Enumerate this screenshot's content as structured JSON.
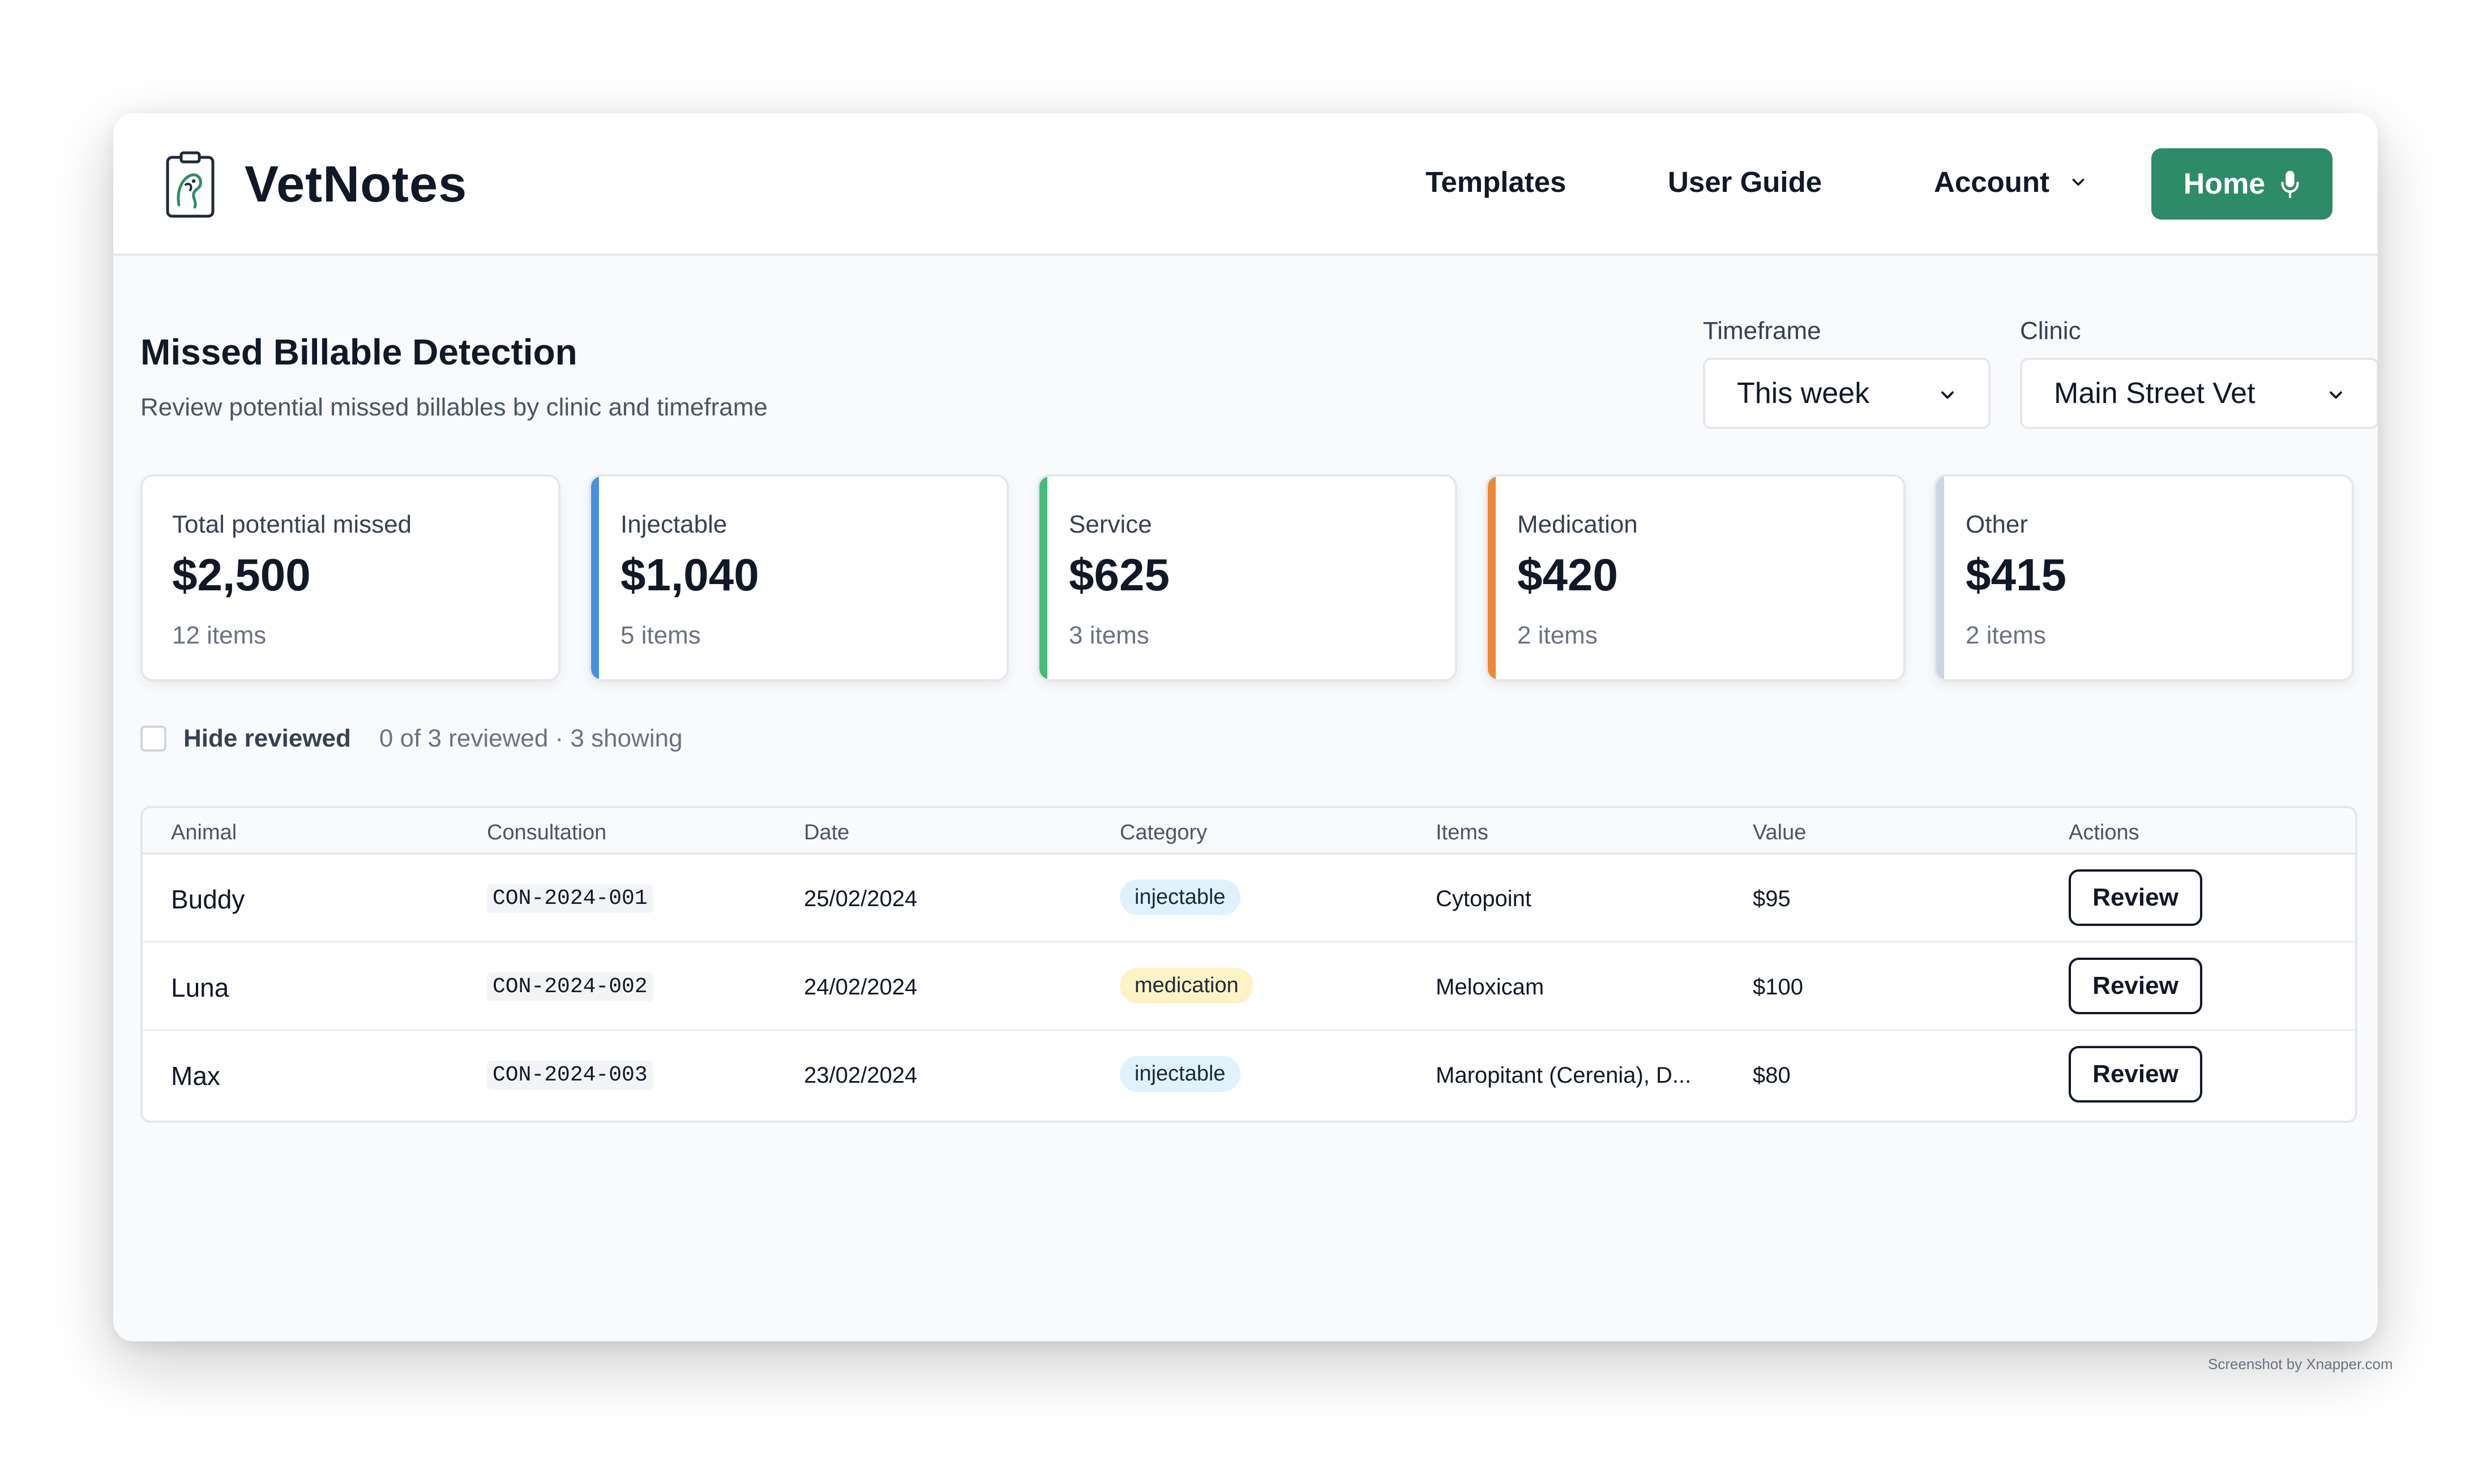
{
  "brand": {
    "name": "VetNotes"
  },
  "nav": {
    "templates": "Templates",
    "user_guide": "User Guide",
    "account": "Account",
    "home": "Home"
  },
  "header": {
    "title": "Missed Billable Detection",
    "subtitle": "Review potential missed billables by clinic and timeframe"
  },
  "filters": {
    "timeframe_label": "Timeframe",
    "timeframe_value": "This week",
    "clinic_label": "Clinic",
    "clinic_value": "Main Street Vet"
  },
  "cards": [
    {
      "label": "Total potential missed",
      "value": "$2,500",
      "items": "12 items",
      "accent": ""
    },
    {
      "label": "Injectable",
      "value": "$1,040",
      "items": "5 items",
      "accent": "#4a90e2"
    },
    {
      "label": "Service",
      "value": "$625",
      "items": "3 items",
      "accent": "#48bb78"
    },
    {
      "label": "Medication",
      "value": "$420",
      "items": "2 items",
      "accent": "#ed8936"
    },
    {
      "label": "Other",
      "value": "$415",
      "items": "2 items",
      "accent": "#cbd5e1"
    }
  ],
  "review_filter": {
    "label": "Hide reviewed",
    "checked": false,
    "summary": "0 of 3 reviewed · 3 showing"
  },
  "table": {
    "columns": [
      "Animal",
      "Consultation",
      "Date",
      "Category",
      "Items",
      "Value",
      "Actions"
    ],
    "rows": [
      {
        "animal": "Buddy",
        "consultation": "CON-2024-001",
        "date": "25/02/2024",
        "category": "injectable",
        "items": "Cytopoint",
        "value": "$95",
        "action": "Review"
      },
      {
        "animal": "Luna",
        "consultation": "CON-2024-002",
        "date": "24/02/2024",
        "category": "medication",
        "items": "Meloxicam",
        "value": "$100",
        "action": "Review"
      },
      {
        "animal": "Max",
        "consultation": "CON-2024-003",
        "date": "23/02/2024",
        "category": "injectable",
        "items": "Maropitant (Cerenia), D...",
        "value": "$80",
        "action": "Review"
      }
    ]
  },
  "watermark": "Screenshot by Xnapper.com",
  "colors": {
    "primary": "#2e8b69",
    "injectable_pill": "#e0f2fe",
    "medication_pill": "#fef3c7"
  }
}
